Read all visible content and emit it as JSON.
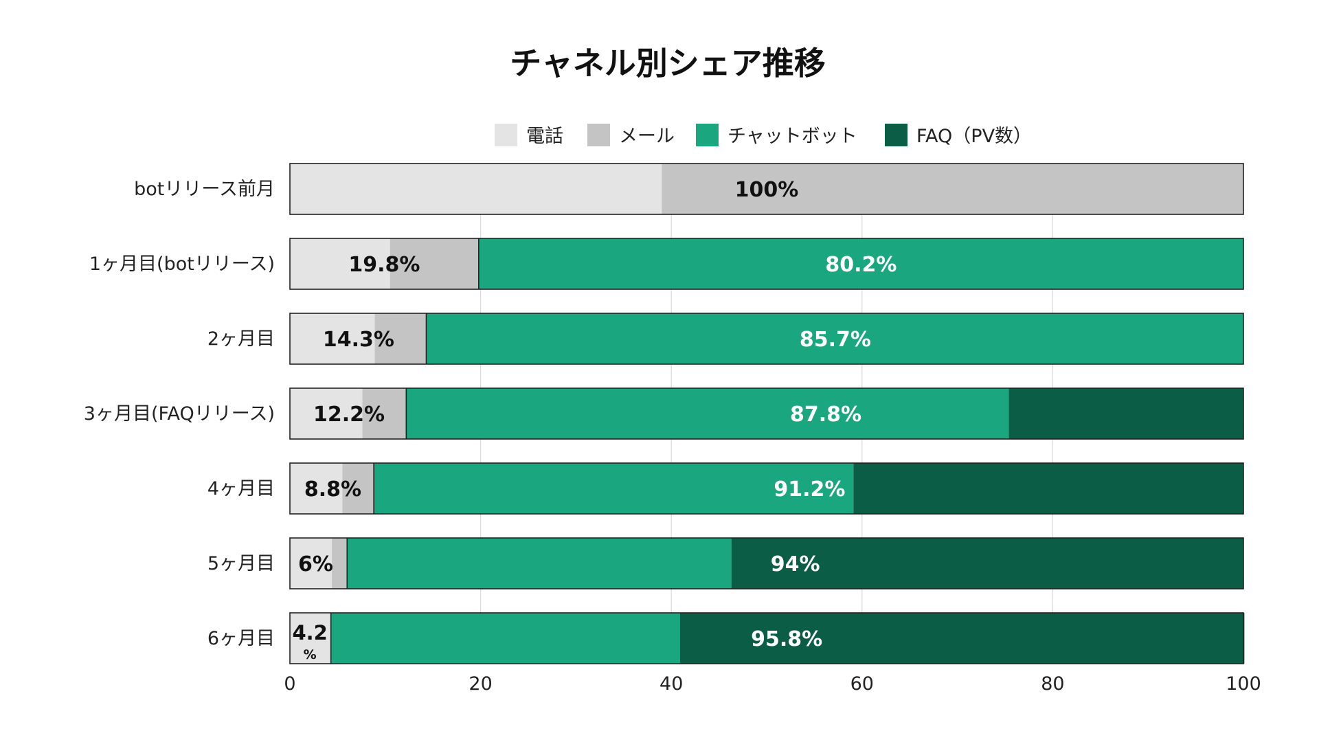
{
  "chart_data": {
    "type": "bar",
    "orientation": "horizontal",
    "stacked": true,
    "title": "チャネル別シェア推移",
    "xlabel": "",
    "ylabel": "",
    "xlim": [
      0,
      100
    ],
    "xticks": [
      0,
      20,
      40,
      60,
      80,
      100
    ],
    "grid": true,
    "legend_position": "top",
    "categories": [
      "botリリース前月",
      "1ヶ月目(botリリース)",
      "2ヶ月目",
      "3ヶ月目(FAQリリース)",
      "4ヶ月目",
      "5ヶ月目",
      "6ヶ月目"
    ],
    "series": [
      {
        "name": "電話",
        "color": "#e4e4e4",
        "values": [
          39,
          10.5,
          8.9,
          7.6,
          5.5,
          4.4,
          4.3
        ]
      },
      {
        "name": "メール",
        "color": "#c4c4c4",
        "values": [
          61,
          9.3,
          5.4,
          4.6,
          3.3,
          1.6,
          0
        ]
      },
      {
        "name": "チャットボット",
        "color": "#1aa67f",
        "values": [
          0,
          80.2,
          85.7,
          63.2,
          50.3,
          40.3,
          36.6
        ]
      },
      {
        "name": "FAQ（PV数）",
        "color": "#0b5e45",
        "values": [
          0,
          0,
          0,
          24.6,
          40.9,
          53.7,
          59.2
        ]
      }
    ],
    "labels": [
      [
        {
          "text": "100%",
          "at": 50,
          "color": "#111111"
        }
      ],
      [
        {
          "text": "19.8%",
          "at": 9.9,
          "color": "#111111"
        },
        {
          "text": "80.2%",
          "at": 59.9,
          "color": "#ffffff"
        }
      ],
      [
        {
          "text": "14.3%",
          "at": 7.2,
          "color": "#111111"
        },
        {
          "text": "85.7%",
          "at": 57.2,
          "color": "#ffffff"
        }
      ],
      [
        {
          "text": "12.2%",
          "at": 6.2,
          "color": "#111111"
        },
        {
          "text": "87.8%",
          "at": 56.2,
          "color": "#ffffff"
        }
      ],
      [
        {
          "text": "8.8%",
          "at": 4.5,
          "color": "#111111"
        },
        {
          "text": "91.2%",
          "at": 54.5,
          "color": "#ffffff"
        }
      ],
      [
        {
          "text": "6%",
          "at": 2.7,
          "color": "#111111"
        },
        {
          "text": "94%",
          "at": 53.0,
          "color": "#ffffff"
        }
      ],
      [
        {
          "text": "4.2",
          "sub": "%",
          "at": 2.1,
          "color": "#111111"
        },
        {
          "text": "95.8%",
          "at": 52.1,
          "color": "#ffffff"
        }
      ]
    ]
  }
}
